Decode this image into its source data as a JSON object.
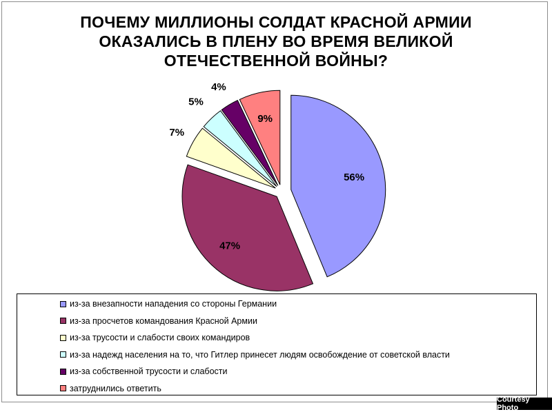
{
  "title": {
    "line1": "ПОЧЕМУ МИЛЛИОНЫ СОЛДАТ КРАСНОЙ АРМИИ",
    "line2": "ОКАЗАЛИСЬ В ПЛЕНУ ВО ВРЕМЯ ВЕЛИКОЙ",
    "line3": "ОТЕЧЕСТВЕННОЙ ВОЙНЫ?"
  },
  "credit": "Courtesy Photo",
  "chart_data": {
    "type": "pie",
    "title": "ПОЧЕМУ МИЛЛИОНЫ СОЛДАТ КРАСНОЙ АРМИИ ОКАЗАЛИСЬ В ПЛЕНУ ВО ВРЕМЯ ВЕЛИКОЙ ОТЕЧЕСТВЕННОЙ ВОЙНЫ?",
    "legend_position": "bottom",
    "slices": [
      {
        "label": "из-за внезапности нападения со стороны Германии",
        "value": 56,
        "value_label": "56%",
        "color": "#9999ff"
      },
      {
        "label": "из-за просчетов командования Красной Армии",
        "value": 47,
        "value_label": "47%",
        "color": "#993366"
      },
      {
        "label": "из-за трусости и слабости своих командиров",
        "value": 7,
        "value_label": "7%",
        "color": "#ffffcc"
      },
      {
        "label": "из-за надежд населения на то, что Гитлер принесет людям освобождение от советской власти",
        "value": 5,
        "value_label": "5%",
        "color": "#ccffff"
      },
      {
        "label": "из-за собственной трусости и слабости",
        "value": 4,
        "value_label": "4%",
        "color": "#660066"
      },
      {
        "label": "затруднились ответить",
        "value": 9,
        "value_label": "9%",
        "color": "#ff8080"
      }
    ]
  }
}
